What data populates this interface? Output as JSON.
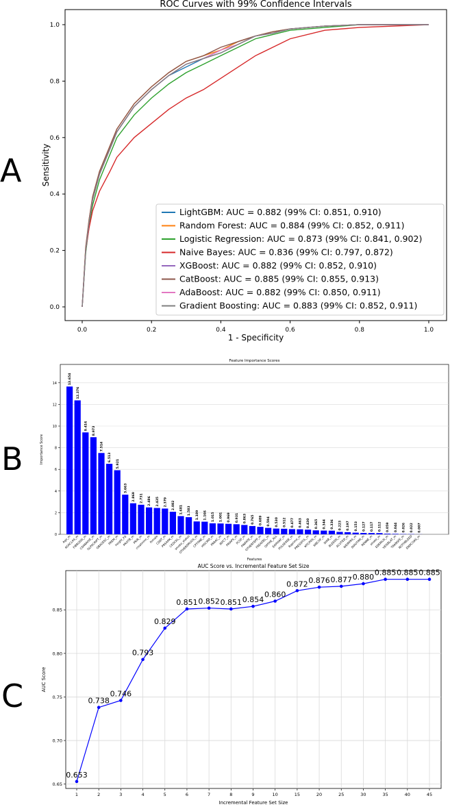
{
  "panels": {
    "a": "A",
    "b": "B",
    "c": "C"
  },
  "chart_data": [
    {
      "type": "line",
      "title": "ROC Curves with 99% Confidence Intervals",
      "xlabel": "1 - Specificity",
      "ylabel": "Sensitivity",
      "xlim": [
        0,
        1
      ],
      "ylim": [
        0,
        1
      ],
      "xticks": [
        "0.0",
        "0.2",
        "0.4",
        "0.6",
        "0.8",
        "1.0"
      ],
      "yticks": [
        "0.0",
        "0.2",
        "0.4",
        "0.6",
        "0.8",
        "1.0"
      ],
      "grid": false,
      "legend_position": "bottom-right",
      "series": [
        {
          "name": "LightGBM: AUC = 0.882 (99% CI: 0.851, 0.910)",
          "color": "#1f77b4",
          "x": [
            0,
            0.01,
            0.02,
            0.03,
            0.05,
            0.08,
            0.1,
            0.15,
            0.2,
            0.25,
            0.3,
            0.35,
            0.4,
            0.45,
            0.5,
            0.55,
            0.6,
            0.7,
            0.8,
            1.0
          ],
          "y": [
            0,
            0.2,
            0.3,
            0.38,
            0.47,
            0.56,
            0.62,
            0.71,
            0.77,
            0.82,
            0.85,
            0.88,
            0.91,
            0.94,
            0.96,
            0.97,
            0.985,
            0.995,
            1.0,
            1.0
          ]
        },
        {
          "name": "Random Forest: AUC = 0.884 (99% CI: 0.852, 0.911)",
          "color": "#ff7f0e",
          "x": [
            0,
            0.01,
            0.02,
            0.03,
            0.05,
            0.08,
            0.1,
            0.15,
            0.2,
            0.25,
            0.3,
            0.35,
            0.4,
            0.45,
            0.5,
            0.55,
            0.6,
            0.7,
            0.8,
            1.0
          ],
          "y": [
            0,
            0.21,
            0.31,
            0.39,
            0.48,
            0.57,
            0.63,
            0.72,
            0.78,
            0.83,
            0.87,
            0.89,
            0.91,
            0.94,
            0.96,
            0.975,
            0.985,
            0.995,
            1.0,
            1.0
          ]
        },
        {
          "name": "Logistic Regression: AUC = 0.873 (99% CI: 0.841, 0.902)",
          "color": "#2ca02c",
          "x": [
            0,
            0.01,
            0.02,
            0.03,
            0.05,
            0.08,
            0.1,
            0.15,
            0.2,
            0.25,
            0.3,
            0.35,
            0.4,
            0.45,
            0.5,
            0.55,
            0.6,
            0.7,
            0.8,
            1.0
          ],
          "y": [
            0,
            0.19,
            0.29,
            0.36,
            0.45,
            0.54,
            0.6,
            0.68,
            0.74,
            0.79,
            0.83,
            0.86,
            0.89,
            0.92,
            0.95,
            0.965,
            0.98,
            0.99,
            1.0,
            1.0
          ]
        },
        {
          "name": "Naive Bayes: AUC = 0.836 (99% CI: 0.797, 0.872)",
          "color": "#d62728",
          "x": [
            0,
            0.01,
            0.02,
            0.03,
            0.05,
            0.08,
            0.1,
            0.15,
            0.2,
            0.25,
            0.3,
            0.35,
            0.4,
            0.45,
            0.5,
            0.55,
            0.6,
            0.7,
            0.8,
            1.0
          ],
          "y": [
            0,
            0.2,
            0.28,
            0.34,
            0.41,
            0.48,
            0.53,
            0.6,
            0.65,
            0.7,
            0.74,
            0.77,
            0.81,
            0.85,
            0.89,
            0.92,
            0.95,
            0.98,
            0.99,
            1.0
          ]
        },
        {
          "name": "XGBoost: AUC = 0.882 (99% CI: 0.852, 0.910)",
          "color": "#9467bd",
          "x": [
            0,
            0.01,
            0.02,
            0.03,
            0.05,
            0.08,
            0.1,
            0.15,
            0.2,
            0.25,
            0.3,
            0.35,
            0.4,
            0.45,
            0.5,
            0.55,
            0.6,
            0.7,
            0.8,
            1.0
          ],
          "y": [
            0,
            0.2,
            0.3,
            0.38,
            0.47,
            0.56,
            0.62,
            0.71,
            0.77,
            0.82,
            0.86,
            0.88,
            0.9,
            0.93,
            0.96,
            0.97,
            0.985,
            0.995,
            1.0,
            1.0
          ]
        },
        {
          "name": "CatBoost: AUC = 0.885 (99% CI: 0.855, 0.913)",
          "color": "#8c564b",
          "x": [
            0,
            0.01,
            0.02,
            0.03,
            0.05,
            0.08,
            0.1,
            0.15,
            0.2,
            0.25,
            0.3,
            0.35,
            0.4,
            0.45,
            0.5,
            0.55,
            0.6,
            0.7,
            0.8,
            1.0
          ],
          "y": [
            0,
            0.21,
            0.31,
            0.39,
            0.48,
            0.57,
            0.63,
            0.72,
            0.78,
            0.83,
            0.87,
            0.89,
            0.92,
            0.94,
            0.96,
            0.975,
            0.985,
            0.995,
            1.0,
            1.0
          ]
        },
        {
          "name": "AdaBoost: AUC = 0.882 (99% CI: 0.850, 0.911)",
          "color": "#e377c2",
          "x": [
            0,
            0.01,
            0.02,
            0.03,
            0.05,
            0.08,
            0.1,
            0.15,
            0.2,
            0.25,
            0.3,
            0.35,
            0.4,
            0.45,
            0.5,
            0.55,
            0.6,
            0.7,
            0.8,
            1.0
          ],
          "y": [
            0,
            0.2,
            0.3,
            0.38,
            0.47,
            0.56,
            0.62,
            0.71,
            0.77,
            0.82,
            0.86,
            0.88,
            0.91,
            0.93,
            0.96,
            0.97,
            0.985,
            0.995,
            1.0,
            1.0
          ]
        },
        {
          "name": "Gradient Boosting: AUC = 0.883 (99% CI: 0.852, 0.911)",
          "color": "#7f7f7f",
          "x": [
            0,
            0.01,
            0.02,
            0.03,
            0.05,
            0.08,
            0.1,
            0.15,
            0.2,
            0.25,
            0.3,
            0.35,
            0.4,
            0.45,
            0.5,
            0.55,
            0.6,
            0.7,
            0.8,
            1.0
          ],
          "y": [
            0,
            0.2,
            0.3,
            0.38,
            0.47,
            0.56,
            0.62,
            0.71,
            0.77,
            0.82,
            0.86,
            0.88,
            0.9,
            0.93,
            0.96,
            0.97,
            0.985,
            0.995,
            1.0,
            1.0
          ]
        }
      ]
    },
    {
      "type": "bar",
      "title": "Feature Importance Scores",
      "xlabel": "Features",
      "ylabel": "Importance Score",
      "ylim": [
        0,
        15
      ],
      "yticks": [
        "0",
        "2",
        "4",
        "6",
        "8",
        "10",
        "12",
        "14"
      ],
      "grid": true,
      "bar_color": "#0000ff",
      "categories": [
        "Age_m",
        "AGACLAS_m",
        "FIBROSIS_m",
        "CD4NAIVE_m",
        "OLPSCRIPT_m",
        "OBAGESC_m",
        "PREM_m",
        "height_kg",
        "PROTB_m",
        "PRIR_m",
        "creatinine_m",
        "female",
        "CD8T_m",
        "PRS4AN_m",
        "CKDCKL_m",
        "smoke_status",
        "OTHERDRUGS_m",
        "CPTONE_m",
        "HISCMD_m",
        "PRRAC_m",
        "IRPCT_m",
        "PRIAPS_m",
        "PCSP_m",
        "PINFATE_m",
        "OTHERTEPP_m",
        "FREADEL_m",
        "OPTHE_ALL",
        "EAPHIAF_m",
        "PULSE4DE_m",
        "Rsprime_m",
        "PRESSPUL_m",
        "MTCPDS_m",
        "WBCHF_m",
        "DIAB_m",
        "BLEEDS_m",
        "ACUTED_m",
        "WEIRPAS_m",
        "DIAUTIMI_m",
        "RENNE_m",
        "stroke_m",
        "EDEMLIS_m",
        "VEISBLAT_m",
        "TRANSFE_m",
        "NOTHBLEED",
        "ENDCOAS_m"
      ],
      "values": [
        13.654,
        12.376,
        9.416,
        8.973,
        7.514,
        6.513,
        5.921,
        3.663,
        2.869,
        2.731,
        2.486,
        2.435,
        2.379,
        2.082,
        1.681,
        1.583,
        1.189,
        1.166,
        1.015,
        1.001,
        0.969,
        0.931,
        0.863,
        0.765,
        0.689,
        0.594,
        0.53,
        0.512,
        0.477,
        0.463,
        0.43,
        0.365,
        0.344,
        0.336,
        0.223,
        0.197,
        0.153,
        0.127,
        0.117,
        0.112,
        0.059,
        0.044,
        0.026,
        0.022,
        0.007
      ],
      "value_labels": [
        "13.654",
        "12.376",
        "9.416",
        "8.973",
        "7.514",
        "6.513",
        "5.921",
        "3.663",
        "2.869",
        "2.731",
        "2.486",
        "2.435",
        "2.379",
        "2.082",
        "1.681",
        "1.583",
        "1.189",
        "1.166",
        "1.015",
        "1.001",
        "0.969",
        "0.931",
        "0.863",
        "0.765",
        "0.689",
        "0.594",
        "0.530",
        "0.512",
        "0.477",
        "0.463",
        "0.430",
        "0.365",
        "0.344",
        "0.336",
        "0.223",
        "0.197",
        "0.153",
        "0.127",
        "0.117",
        "0.112",
        "0.059",
        "0.044",
        "0.026",
        "0.022",
        "0.007"
      ]
    },
    {
      "type": "line",
      "title": "AUC Score vs. Incremental Feature Set Size",
      "xlabel": "Incremental Feature Set Size",
      "ylabel": "AUC Score",
      "ylim": [
        0.645,
        0.895
      ],
      "yticks": [
        "0.65",
        "0.70",
        "0.75",
        "0.80",
        "0.85"
      ],
      "grid": true,
      "color": "#0000ff",
      "categories": [
        "1",
        "2",
        "3",
        "4",
        "5",
        "6",
        "7",
        "8",
        "9",
        "10",
        "15",
        "20",
        "25",
        "30",
        "35",
        "40",
        "45"
      ],
      "values": [
        0.653,
        0.738,
        0.746,
        0.793,
        0.829,
        0.851,
        0.852,
        0.851,
        0.854,
        0.86,
        0.872,
        0.876,
        0.877,
        0.88,
        0.885,
        0.885,
        0.885
      ],
      "value_labels": [
        "0.653",
        "0.738",
        "0.746",
        "0.793",
        "0.829",
        "0.851",
        "0.852",
        "0.851",
        "0.854",
        "0.860",
        "0.872",
        "0.876",
        "0.877",
        "0.880",
        "0.885",
        "0.885",
        "0.885"
      ]
    }
  ]
}
